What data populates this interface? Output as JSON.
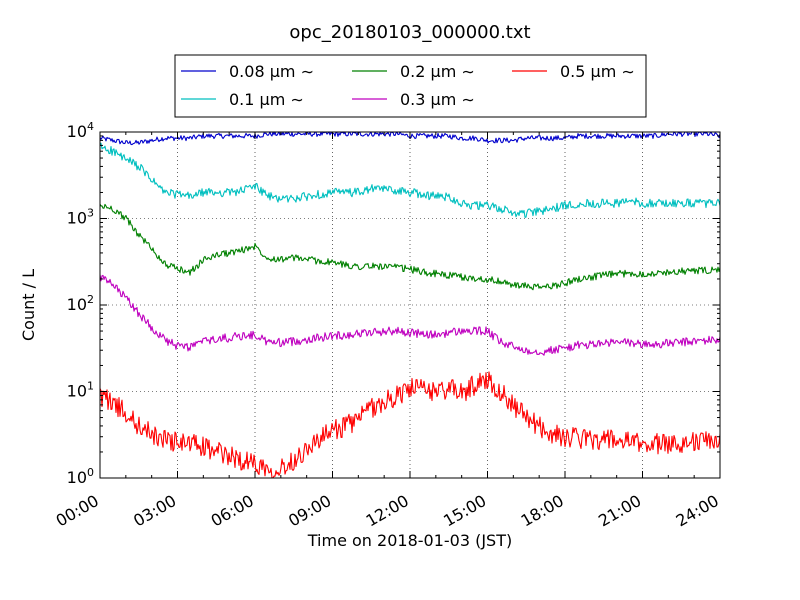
{
  "chart_data": {
    "type": "line",
    "title": "opc_20180103_000000.txt",
    "xlabel": "Time on 2018-01-03 (JST)",
    "ylabel": "Count / L",
    "x_unit": "hours",
    "x_range_hours": [
      0,
      24
    ],
    "y_scale": "log",
    "ylim": [
      1,
      10000
    ],
    "grid": true,
    "grid_style": "dotted",
    "legend_position": "top (above plot)",
    "x_tick_labels": [
      "00:00",
      "03:00",
      "06:00",
      "09:00",
      "12:00",
      "15:00",
      "18:00",
      "21:00",
      "24:00"
    ],
    "y_tick_labels": [
      {
        "base": "10",
        "exp": "0"
      },
      {
        "base": "10",
        "exp": "1"
      },
      {
        "base": "10",
        "exp": "2"
      },
      {
        "base": "10",
        "exp": "3"
      },
      {
        "base": "10",
        "exp": "4"
      }
    ],
    "x_hours": [
      0,
      0.5,
      1,
      1.5,
      2,
      2.5,
      3,
      3.5,
      4,
      4.5,
      5,
      5.5,
      6,
      6.5,
      7,
      7.5,
      8,
      8.5,
      9,
      9.5,
      10,
      10.5,
      11,
      11.5,
      12,
      12.5,
      13,
      13.5,
      14,
      14.5,
      15,
      15.5,
      16,
      16.5,
      17,
      17.5,
      18,
      18.5,
      19,
      19.5,
      20,
      20.5,
      21,
      21.5,
      22,
      22.5,
      23,
      23.5,
      24
    ],
    "series": [
      {
        "name": "0.08 μm ∼",
        "color": "#0000cc",
        "noise": 0.03,
        "values": [
          8500,
          8000,
          7500,
          7500,
          8000,
          8500,
          8500,
          8500,
          9000,
          9000,
          9000,
          9000,
          9000,
          9500,
          9500,
          9500,
          9500,
          9500,
          9500,
          9500,
          9500,
          9500,
          9500,
          9500,
          9000,
          9000,
          9000,
          9000,
          8500,
          8500,
          8000,
          8000,
          8000,
          8500,
          8500,
          8500,
          8500,
          9000,
          9000,
          9000,
          9000,
          9000,
          9000,
          9000,
          9500,
          9500,
          9500,
          9500,
          9000
        ]
      },
      {
        "name": "0.1 μm ∼",
        "color": "#00bfbf",
        "noise": 0.05,
        "values": [
          6800,
          6000,
          4800,
          4000,
          2800,
          2000,
          1900,
          1800,
          2000,
          2000,
          2000,
          2100,
          2400,
          1800,
          1700,
          1700,
          1800,
          1900,
          2000,
          2000,
          2000,
          2200,
          2200,
          2100,
          2000,
          1900,
          1800,
          1800,
          1500,
          1400,
          1400,
          1300,
          1150,
          1150,
          1200,
          1300,
          1400,
          1500,
          1500,
          1500,
          1500,
          1600,
          1500,
          1500,
          1500,
          1500,
          1500,
          1500,
          1500
        ]
      },
      {
        "name": "0.2 μm ∼",
        "color": "#008000",
        "noise": 0.04,
        "values": [
          1400,
          1300,
          1000,
          650,
          450,
          300,
          260,
          240,
          330,
          380,
          400,
          430,
          480,
          350,
          340,
          350,
          340,
          320,
          310,
          290,
          280,
          280,
          280,
          270,
          260,
          240,
          230,
          220,
          210,
          200,
          200,
          185,
          170,
          165,
          160,
          165,
          180,
          200,
          210,
          220,
          230,
          230,
          230,
          230,
          240,
          245,
          250,
          250,
          255
        ]
      },
      {
        "name": "0.3 μm ∼",
        "color": "#bf00bf",
        "noise": 0.05,
        "values": [
          210,
          170,
          120,
          80,
          55,
          40,
          33,
          33,
          38,
          40,
          42,
          44,
          45,
          37,
          37,
          38,
          40,
          42,
          44,
          45,
          47,
          48,
          50,
          50,
          48,
          46,
          45,
          48,
          50,
          50,
          50,
          37,
          33,
          30,
          29,
          30,
          32,
          34,
          35,
          36,
          37,
          37,
          35,
          35,
          36,
          37,
          38,
          39,
          40
        ]
      },
      {
        "name": "0.5 μm ∼",
        "color": "#ff0000",
        "noise": 0.12,
        "values": [
          9,
          7.5,
          5.5,
          4,
          3.2,
          2.8,
          2.6,
          2.5,
          2.3,
          2.0,
          1.8,
          1.6,
          1.5,
          1.3,
          1.3,
          1.6,
          2.2,
          2.8,
          3.5,
          4.0,
          4.8,
          6.5,
          7.5,
          9,
          11,
          10.5,
          10,
          11,
          9.5,
          12,
          14,
          10,
          7,
          5,
          4,
          3.2,
          3.0,
          2.9,
          2.8,
          2.8,
          2.7,
          2.6,
          2.5,
          2.5,
          2.5,
          2.6,
          2.6,
          2.7,
          2.7
        ]
      }
    ]
  }
}
